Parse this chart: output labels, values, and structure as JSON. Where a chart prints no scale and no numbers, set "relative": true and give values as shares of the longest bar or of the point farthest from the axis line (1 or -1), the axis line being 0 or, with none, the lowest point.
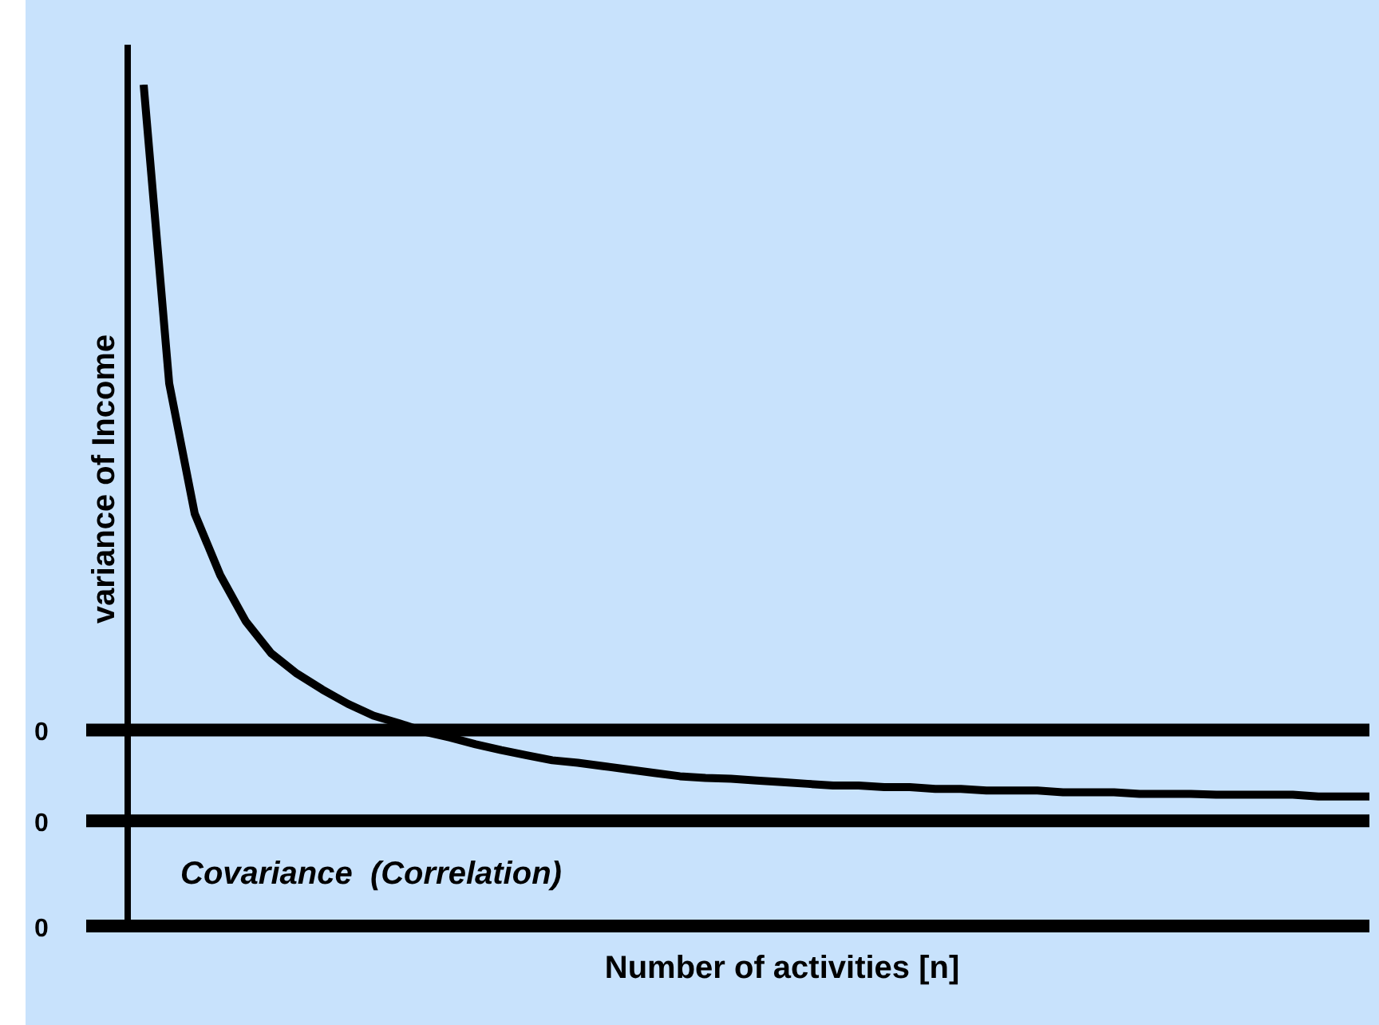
{
  "chart_data": {
    "type": "line",
    "relative": true,
    "xlabel": "Number of activities [n]",
    "ylabel": "variance of Income",
    "categories": [
      null,
      null,
      null,
      null,
      null,
      null,
      null,
      null,
      null,
      null,
      null,
      null,
      null,
      null,
      null,
      null,
      null,
      null,
      null,
      null,
      null,
      null,
      null,
      null,
      null,
      null,
      null,
      null,
      null,
      null,
      null,
      null,
      null,
      null,
      null,
      null,
      null,
      null,
      null,
      null,
      null,
      null,
      null,
      null,
      null,
      null,
      null,
      null,
      null
    ],
    "series": [
      {
        "color": "#000000",
        "values": [
          1.0,
          0.645,
          0.49,
          0.417,
          0.362,
          0.324,
          0.3,
          0.281,
          0.264,
          0.25,
          0.241,
          0.231,
          0.224,
          0.216,
          0.209,
          0.203,
          0.197,
          0.194,
          0.19,
          0.186,
          0.182,
          0.178,
          0.176,
          0.175,
          0.173,
          0.171,
          0.169,
          0.167,
          0.167,
          0.165,
          0.165,
          0.163,
          0.163,
          0.161,
          0.161,
          0.161,
          0.159,
          0.159,
          0.159,
          0.157,
          0.157,
          0.157,
          0.156,
          0.156,
          0.156,
          0.156,
          0.154,
          0.154,
          0.154
        ]
      }
    ],
    "ref_lines": [
      {
        "axis": "y",
        "value": 0.233,
        "label": "0",
        "color": "#000000"
      },
      {
        "axis": "y",
        "value": 0.125,
        "label": "0",
        "color": "#000000"
      },
      {
        "axis": "y",
        "value": 0,
        "label": "0",
        "color": "#000000"
      }
    ],
    "annotations": [
      "Covariance  (Correlation)"
    ],
    "legend": false,
    "marker": "none",
    "line_style": "solid"
  }
}
